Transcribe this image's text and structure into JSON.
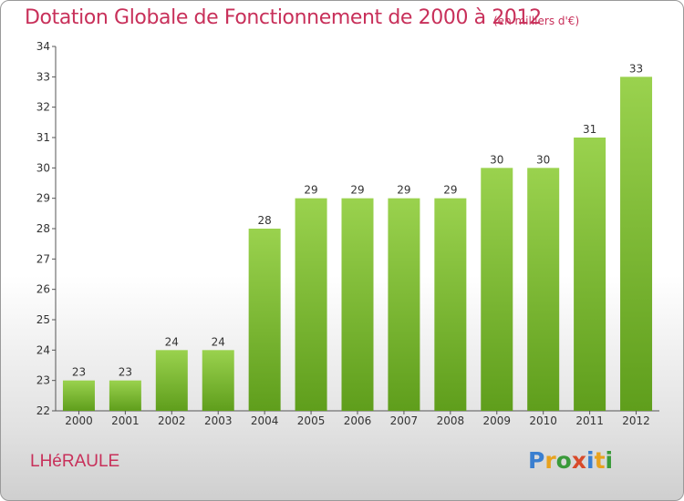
{
  "header": {
    "title": "Dotation Globale de Fonctionnement de 2000 à 2012",
    "unit": "(en milliers d'€)"
  },
  "footer": {
    "commune": "LHéRAULE",
    "logo_letters": [
      "P",
      "r",
      "o",
      "x",
      "i",
      "t",
      "i"
    ],
    "logo_colors": [
      "#3a7fd0",
      "#e8a21e",
      "#3a9a3a",
      "#d84a2a",
      "#3a7fd0",
      "#e8a21e",
      "#3a9a3a"
    ]
  },
  "chart_data": {
    "type": "bar",
    "categories": [
      "2000",
      "2001",
      "2002",
      "2003",
      "2004",
      "2005",
      "2006",
      "2007",
      "2008",
      "2009",
      "2010",
      "2011",
      "2012"
    ],
    "values": [
      23,
      23,
      24,
      24,
      28,
      29,
      29,
      29,
      29,
      30,
      30,
      31,
      33
    ],
    "title": "Dotation Globale de Fonctionnement de 2000 à 2012",
    "ylim": [
      22,
      34
    ],
    "yticks": [
      22,
      23,
      24,
      25,
      26,
      27,
      28,
      29,
      30,
      31,
      32,
      33,
      34
    ],
    "grid": false,
    "bar_color": "#7cc23a"
  }
}
